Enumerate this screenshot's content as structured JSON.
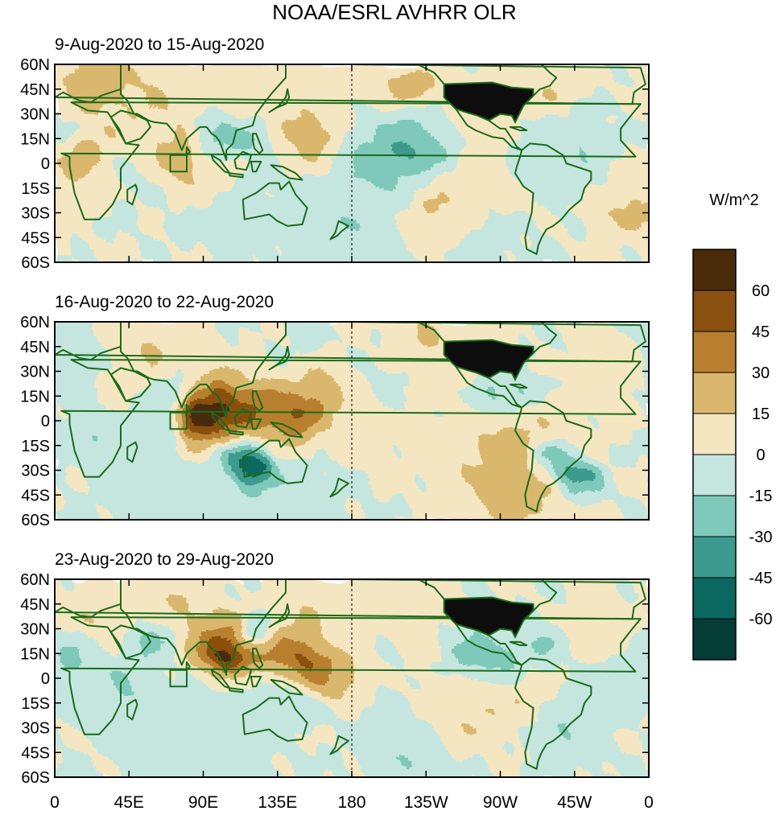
{
  "chart_data": {
    "type": "heatmap",
    "title": "NOAA/ESRL AVHRR OLR",
    "colorbar": {
      "units": "W/m^2",
      "levels": [
        60,
        45,
        30,
        15,
        0,
        -15,
        -30,
        -45,
        -60
      ],
      "colors": [
        "#4a2c0a",
        "#8a5010",
        "#b8802e",
        "#d9b86e",
        "#f5e6c2",
        "#c4e6df",
        "#7ec9ba",
        "#3c9a8e",
        "#0b6860",
        "#053d36"
      ]
    },
    "x_ticks": [
      "0",
      "45E",
      "90E",
      "135E",
      "180",
      "135W",
      "90W",
      "45W",
      "0"
    ],
    "y_ticks": [
      "60N",
      "45N",
      "30N",
      "15N",
      "0",
      "15S",
      "30S",
      "45S",
      "60S"
    ],
    "xlim_deg_east": [
      0,
      360
    ],
    "ylim_deg": [
      -60,
      60
    ],
    "panels": [
      {
        "period": "9-Aug-2020 to 15-Aug-2020",
        "blobs": [
          [
            195,
            12,
            22,
            -1.4
          ],
          [
            215,
            10,
            14,
            -1.2
          ],
          [
            232,
            10,
            12,
            -1.0
          ],
          [
            98,
            18,
            10,
            -1.3
          ],
          [
            118,
            15,
            10,
            -1.2
          ],
          [
            95,
            5,
            10,
            -1.0
          ],
          [
            290,
            2,
            18,
            -0.9
          ],
          [
            8,
            22,
            10,
            -0.8
          ],
          [
            50,
            -6,
            12,
            -0.6
          ],
          [
            180,
            -40,
            30,
            -0.7
          ],
          [
            250,
            -42,
            18,
            -1.1
          ],
          [
            320,
            8,
            14,
            -0.6
          ],
          [
            105,
            -20,
            20,
            -0.5
          ],
          [
            155,
            30,
            16,
            -0.6
          ],
          [
            50,
            38,
            30,
            0.9
          ],
          [
            150,
            20,
            14,
            1.6
          ],
          [
            165,
            10,
            12,
            1.0
          ],
          [
            78,
            2,
            12,
            1.5
          ],
          [
            100,
            -2,
            12,
            1.3
          ],
          [
            15,
            5,
            10,
            1.5
          ],
          [
            235,
            -30,
            18,
            1.8
          ],
          [
            350,
            -28,
            14,
            1.2
          ],
          [
            190,
            40,
            24,
            1.0
          ],
          [
            215,
            45,
            10,
            1.3
          ],
          [
            300,
            48,
            12,
            1.0
          ],
          [
            20,
            52,
            14,
            1.2
          ],
          [
            120,
            54,
            20,
            0.7
          ],
          [
            255,
            22,
            20,
            0.9
          ],
          [
            280,
            -15,
            15,
            0.6
          ]
        ]
      },
      {
        "period": "16-Aug-2020 to 22-Aug-2020",
        "blobs": [
          [
            95,
            3,
            14,
            3.2
          ],
          [
            85,
            0,
            8,
            2.5
          ],
          [
            120,
            4,
            12,
            2.2
          ],
          [
            145,
            2,
            12,
            2.0
          ],
          [
            155,
            20,
            18,
            1.8
          ],
          [
            100,
            20,
            10,
            1.4
          ],
          [
            280,
            -30,
            28,
            1.7
          ],
          [
            60,
            45,
            20,
            1.0
          ],
          [
            225,
            48,
            20,
            1.1
          ],
          [
            340,
            32,
            14,
            0.9
          ],
          [
            40,
            12,
            12,
            0.8
          ],
          [
            195,
            -5,
            18,
            0.5
          ],
          [
            110,
            -22,
            8,
            -2.2
          ],
          [
            122,
            -28,
            8,
            -2.5
          ],
          [
            298,
            -22,
            8,
            -2.0
          ],
          [
            312,
            -30,
            8,
            -2.4
          ],
          [
            325,
            -36,
            8,
            -2.0
          ],
          [
            55,
            3,
            12,
            -1.3
          ],
          [
            75,
            20,
            10,
            -1.1
          ],
          [
            25,
            -10,
            14,
            -0.9
          ],
          [
            265,
            15,
            10,
            -1.4
          ],
          [
            285,
            18,
            8,
            -1.2
          ],
          [
            150,
            38,
            14,
            -0.9
          ],
          [
            200,
            25,
            20,
            -0.6
          ],
          [
            130,
            -48,
            30,
            -0.6
          ],
          [
            60,
            -40,
            20,
            -0.6
          ],
          [
            10,
            40,
            14,
            -0.8
          ]
        ]
      },
      {
        "period": "23-Aug-2020 to 29-Aug-2020",
        "blobs": [
          [
            100,
            18,
            12,
            2.8
          ],
          [
            112,
            15,
            10,
            2.3
          ],
          [
            140,
            12,
            14,
            2.4
          ],
          [
            155,
            5,
            12,
            1.8
          ],
          [
            175,
            5,
            12,
            1.2
          ],
          [
            75,
            42,
            18,
            1.0
          ],
          [
            205,
            42,
            20,
            1.1
          ],
          [
            250,
            -18,
            18,
            1.1
          ],
          [
            290,
            -10,
            14,
            0.9
          ],
          [
            330,
            30,
            14,
            0.9
          ],
          [
            25,
            36,
            14,
            1.0
          ],
          [
            160,
            40,
            14,
            0.8
          ],
          [
            120,
            26,
            8,
            -2.2
          ],
          [
            60,
            24,
            10,
            -1.6
          ],
          [
            10,
            16,
            10,
            -1.4
          ],
          [
            255,
            15,
            12,
            -1.6
          ],
          [
            272,
            12,
            8,
            -1.3
          ],
          [
            135,
            -5,
            12,
            -1.3
          ],
          [
            150,
            -10,
            10,
            -1.0
          ],
          [
            310,
            -25,
            16,
            -1.2
          ],
          [
            215,
            -48,
            18,
            -0.9
          ],
          [
            90,
            -48,
            26,
            -0.8
          ],
          [
            40,
            -5,
            14,
            -1.0
          ],
          [
            295,
            18,
            8,
            -1.4
          ],
          [
            345,
            0,
            12,
            -0.6
          ],
          [
            190,
            25,
            20,
            -0.6
          ]
        ]
      }
    ]
  }
}
